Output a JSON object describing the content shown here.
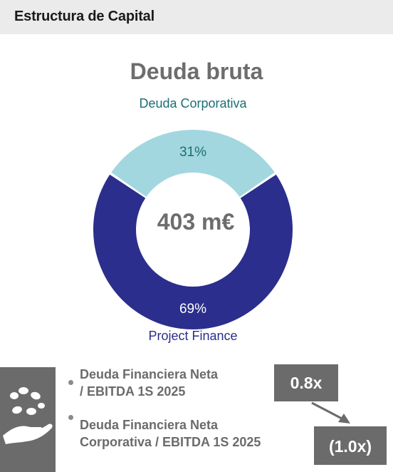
{
  "header": {
    "title": "Estructura de Capital"
  },
  "chart_data": {
    "type": "pie",
    "title": "Deuda bruta",
    "center_label": "403 m€",
    "slices": [
      {
        "name": "Deuda Corporativa",
        "value": 31,
        "label": "31%",
        "color": "#a3d7df",
        "label_color": "#1b6f73"
      },
      {
        "name": "Project Finance",
        "value": 69,
        "label": "69%",
        "color": "#2b2e8c",
        "label_color": "#ffffff"
      }
    ]
  },
  "labels": {
    "top": "Deuda Corporativa",
    "bottom": "Project Finance"
  },
  "metrics": {
    "icon": "hand-coins-icon",
    "item1": {
      "line1": "Deuda Financiera Neta",
      "line2": "/ EBITDA 1S 2025",
      "value": "0.8x"
    },
    "item2": {
      "line1": "Deuda Financiera Neta",
      "line2": "Corporativa / EBITDA 1S 2025",
      "value": "(1.0x)"
    }
  },
  "colors": {
    "panel_gray": "#6b6b6b",
    "header_bg": "#ebebeb"
  }
}
